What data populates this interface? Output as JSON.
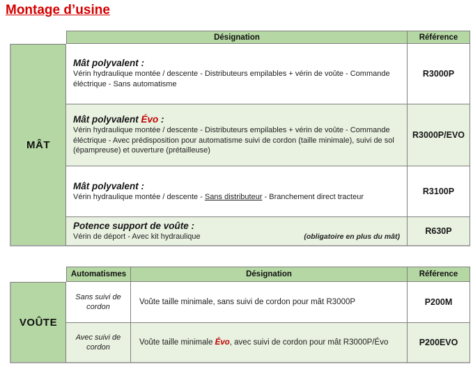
{
  "page_title": "Montage d’usine",
  "colors": {
    "title_red": "#d40000",
    "evo_red": "#c00000",
    "header_green": "#b5d7a3",
    "row_green": "#e9f2e1",
    "border_gray": "#7f7f7f"
  },
  "mast_table": {
    "row_label": "MÂT",
    "headers": {
      "designation": "Désignation",
      "reference": "Référence"
    },
    "rows": [
      {
        "title": "Mât polyvalent :",
        "description": "Vérin hydraulique montée / descente - Distributeurs empilables + vérin de voûte - Commande éléctrique - Sans automatisme",
        "reference": "R3000P"
      },
      {
        "title_prefix": "Mât polyvalent ",
        "title_highlight": "Évo",
        "title_suffix": " :",
        "description": "Vérin hydraulique montée / descente - Distributeurs empilables + vérin de voûte - Commande éléctrique - Avec prédisposition pour automatisme suivi de cordon (taille minimale), suivi de sol (épampreuse) et ouverture (prétailleuse)",
        "reference": "R3000P/EVO"
      },
      {
        "title": "Mât polyvalent :",
        "description_prefix": "Vérin hydraulique montée / descente - ",
        "description_underlined": "Sans distributeur",
        "description_suffix": " - Branchement direct tracteur",
        "reference": "R3100P"
      },
      {
        "title": "Potence support de voûte :",
        "description": "Vérin de déport - Avec kit hydraulique",
        "note": "(obligatoire en plus du mât)",
        "reference": "R630P"
      }
    ]
  },
  "vault_table": {
    "row_label": "VOÛTE",
    "headers": {
      "automatismes": "Automatismes",
      "designation": "Désignation",
      "reference": "Référence"
    },
    "rows": [
      {
        "automatisme": "Sans suivi de cordon",
        "description": "Voûte taille minimale, sans suivi de cordon pour mât R3000P",
        "reference": "P200M"
      },
      {
        "automatisme": "Avec suivi de cordon",
        "description_prefix": "Voûte taille minimale ",
        "description_highlight": "Évo",
        "description_suffix": ", avec suivi de cordon pour mât R3000P/Évo",
        "reference": "P200EVO"
      }
    ]
  }
}
